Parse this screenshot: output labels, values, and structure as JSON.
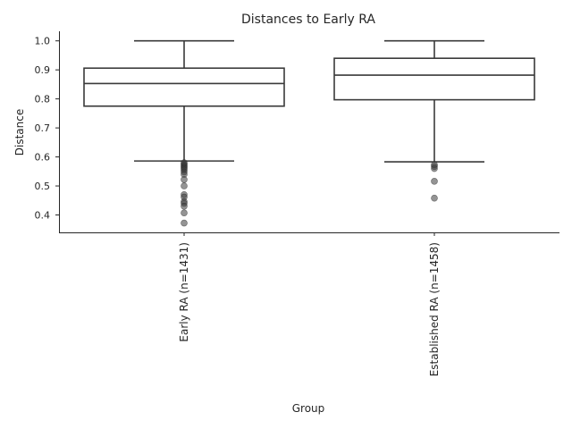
{
  "chart_data": {
    "type": "box",
    "title": "Distances to Early RA",
    "xlabel": "Group",
    "ylabel": "Distance",
    "categories": [
      "Early RA (n=1431)",
      "Established RA (n=1458)"
    ],
    "ylim": [
      0.34,
      1.033
    ],
    "yticks": [
      0.4,
      0.5,
      0.6,
      0.7,
      0.8,
      0.9,
      1.0
    ],
    "ytick_labels": [
      "0.4",
      "0.5",
      "0.6",
      "0.7",
      "0.8",
      "0.9",
      "1.0"
    ],
    "grid": false,
    "series": [
      {
        "group": "Early RA (n=1431)",
        "whisker_low": 0.586,
        "q1": 0.775,
        "median": 0.853,
        "q3": 0.906,
        "whisker_high": 1.0,
        "outliers": [
          0.58,
          0.576,
          0.572,
          0.568,
          0.564,
          0.56,
          0.555,
          0.548,
          0.54,
          0.522,
          0.5,
          0.47,
          0.462,
          0.446,
          0.44,
          0.43,
          0.407,
          0.372
        ]
      },
      {
        "group": "Established RA (n=1458)",
        "whisker_low": 0.583,
        "q1": 0.797,
        "median": 0.882,
        "q3": 0.94,
        "whisker_high": 1.0,
        "outliers": [
          0.573,
          0.567,
          0.56,
          0.516,
          0.458
        ]
      }
    ]
  }
}
